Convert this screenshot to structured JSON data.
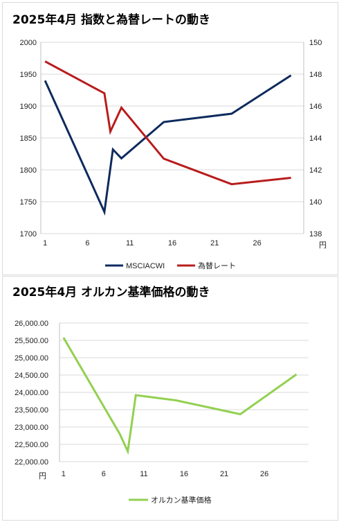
{
  "chart_data": [
    {
      "type": "line",
      "title": "2025年4月 指数と為替レートの動き",
      "x": [
        1,
        8,
        9,
        10,
        15,
        23,
        30
      ],
      "xticks": [
        "1",
        "6",
        "11",
        "16",
        "21",
        "26"
      ],
      "xunit": "円",
      "y_left": {
        "ylim": [
          1700,
          2000
        ],
        "ticks": [
          "1700",
          "1750",
          "1800",
          "1850",
          "1900",
          "1950",
          "2000"
        ]
      },
      "y_right": {
        "ylim": [
          138,
          150
        ],
        "ticks": [
          "138",
          "140",
          "142",
          "144",
          "146",
          "148",
          "150"
        ]
      },
      "grid": true,
      "legend": "bottom",
      "series": [
        {
          "name": "MSCIACWI",
          "axis": "left",
          "color": "#0e2a5e",
          "x": [
            1,
            8,
            9,
            10,
            15,
            23,
            30
          ],
          "values": [
            1940,
            1734,
            1832,
            1818,
            1875,
            1888,
            1948
          ]
        },
        {
          "name": "為替レート",
          "axis": "right",
          "color": "#b81c1c",
          "x": [
            1,
            8,
            8.7,
            10,
            15,
            23,
            30
          ],
          "values": [
            148.8,
            146.8,
            144.4,
            145.9,
            142.7,
            141.1,
            141.5
          ]
        }
      ]
    },
    {
      "type": "line",
      "title": "2025年4月 オルカン基準価格の動き",
      "xticks": [
        "1",
        "6",
        "11",
        "16",
        "21",
        "26"
      ],
      "yunit": "円",
      "ylim": [
        22000,
        26000
      ],
      "yticks": [
        "22,000.00",
        "22,500.00",
        "23,000.00",
        "23,500.00",
        "24,000.00",
        "24,500.00",
        "25,000.00",
        "25,500.00",
        "26,000.00"
      ],
      "grid": true,
      "legend": "bottom",
      "series": [
        {
          "name": "オルカン基準価格",
          "color": "#92d050",
          "x": [
            1,
            8,
            9,
            10,
            15,
            23,
            30
          ],
          "values": [
            25580,
            22800,
            22300,
            23920,
            23770,
            23370,
            24520
          ]
        }
      ]
    }
  ]
}
